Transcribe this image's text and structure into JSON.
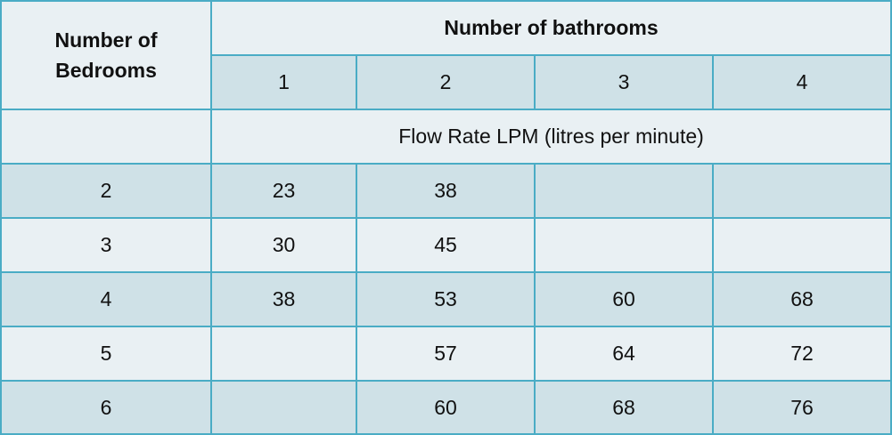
{
  "table": {
    "header_bedrooms_line1": "Number of",
    "header_bedrooms_line2": "Bedrooms",
    "header_bathrooms": "Number of bathrooms",
    "bathroom_counts": [
      "1",
      "2",
      "3",
      "4"
    ],
    "flow_rate_label": "Flow Rate LPM (litres per minute)",
    "rows": [
      {
        "bedrooms": "2",
        "values": [
          "23",
          "38",
          "",
          ""
        ]
      },
      {
        "bedrooms": "3",
        "values": [
          "30",
          "45",
          "",
          ""
        ]
      },
      {
        "bedrooms": "4",
        "values": [
          "38",
          "53",
          "60",
          "68"
        ]
      },
      {
        "bedrooms": "5",
        "values": [
          "",
          "57",
          "64",
          "72"
        ]
      },
      {
        "bedrooms": "6",
        "values": [
          "",
          "60",
          "68",
          "76"
        ]
      }
    ]
  },
  "colors": {
    "border": "#4aacc5",
    "light_fill": "#e9f0f3",
    "dark_fill": "#cfe1e7",
    "text": "#111111"
  }
}
